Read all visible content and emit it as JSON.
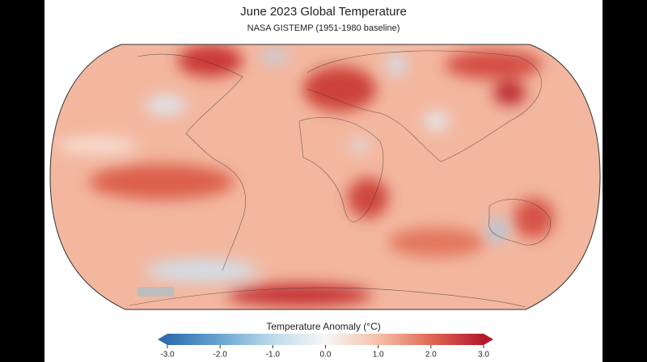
{
  "header": {
    "title": "June 2023 Global Temperature",
    "subtitle": "NASA GISTEMP (1951-1980 baseline)"
  },
  "colorbar": {
    "label": "Temperature Anomaly (°C)",
    "ticks": [
      {
        "value": -3,
        "label": "-3.0"
      },
      {
        "value": -2,
        "label": "-2.0"
      },
      {
        "value": -1,
        "label": "-1.0"
      },
      {
        "value": 0,
        "label": "0.0"
      },
      {
        "value": 1,
        "label": "1.0"
      },
      {
        "value": 2,
        "label": "2.0"
      },
      {
        "value": 3,
        "label": "3.0"
      }
    ]
  }
}
